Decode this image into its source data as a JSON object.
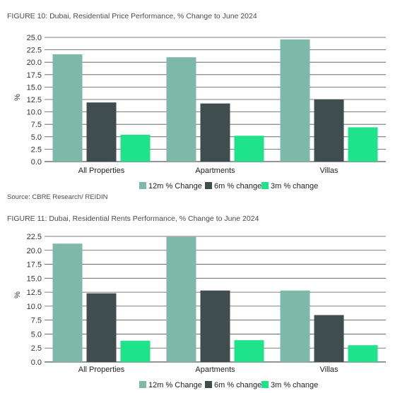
{
  "colors": {
    "series_12m": "#7eb8a9",
    "series_6m": "#404d4f",
    "series_3m": "#1ee38a",
    "grid": "#555555"
  },
  "figures": [
    {
      "title": "FIGURE 10: Dubai, Residential Price Performance, % Change to June 2024",
      "source": "Source: CBRE Research/ REIDIN",
      "chart_data": {
        "type": "bar",
        "ylabel": "%",
        "ylim": [
          0,
          25
        ],
        "yticks": [
          "0.0",
          "2.5",
          "5.0",
          "7.5",
          "10.0",
          "12.5",
          "15.0",
          "17.5",
          "20.0",
          "22.5",
          "25.0"
        ],
        "categories": [
          "All Properties",
          "Apartments",
          "Villas"
        ],
        "series": [
          {
            "name": "12m % Change",
            "values": [
              21.6,
              21.0,
              24.6
            ]
          },
          {
            "name": "6m % change",
            "values": [
              11.9,
              11.7,
              12.5
            ]
          },
          {
            "name": "3m % change",
            "values": [
              5.4,
              5.2,
              6.9
            ]
          }
        ],
        "grid": true,
        "legend": "bottom"
      }
    },
    {
      "title": "FIGURE 11: Dubai, Residential Rents Performance, % Change to June 2024",
      "source": "",
      "chart_data": {
        "type": "bar",
        "ylabel": "%",
        "ylim": [
          0,
          22.5
        ],
        "yticks": [
          "0.0",
          "2.5",
          "5.0",
          "7.5",
          "10.0",
          "12.5",
          "15.0",
          "17.5",
          "20.0",
          "22.5"
        ],
        "categories": [
          "All Properties",
          "Apartments",
          "Villas"
        ],
        "series": [
          {
            "name": "12m % Change",
            "values": [
              21.2,
              22.4,
              12.8
            ]
          },
          {
            "name": "6m % change",
            "values": [
              12.3,
              12.8,
              8.4
            ]
          },
          {
            "name": "3m % change",
            "values": [
              3.8,
              3.9,
              3.0
            ]
          }
        ],
        "grid": true,
        "legend": "bottom"
      }
    }
  ]
}
